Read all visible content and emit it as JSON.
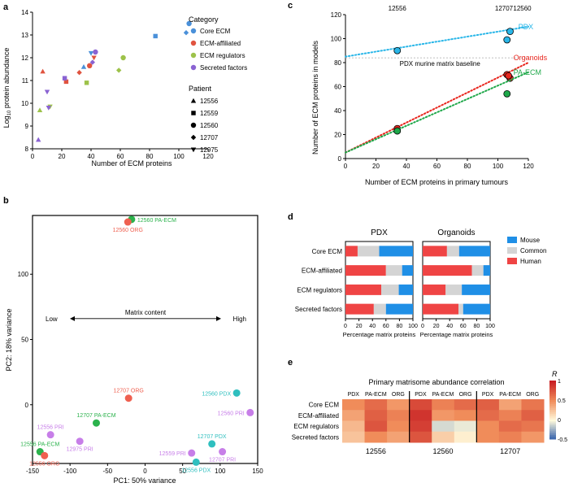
{
  "panel_labels": [
    "a",
    "b",
    "c",
    "d",
    "e"
  ],
  "colors": {
    "core_ecm": "#4a90d9",
    "ecm_affiliated": "#e0533f",
    "ecm_regulators": "#9dc24a",
    "secreted_factors": "#8a63d2",
    "mouse": "#1f8fe6",
    "common": "#d4d4d4",
    "human": "#ef4444",
    "pdx_line": "#29b6e8",
    "org_line": "#e8261e",
    "paecm_line": "#1fa84a",
    "pca_paecm": "#2bb24c",
    "pca_org": "#ef6050",
    "pca_pdx": "#2fbfbf",
    "pca_pri": "#c77ee8"
  },
  "chart_data": [
    {
      "id": "a",
      "type": "scatter",
      "xlabel": "Number of ECM proteins",
      "ylabel": "Log10 protein abundance",
      "ylabel_main": "Log",
      "ylabel_sub": "10",
      "ylabel_rest": " protein abundance",
      "xlim": [
        0,
        120
      ],
      "ylim": [
        8,
        14
      ],
      "xticks": [
        0,
        20,
        40,
        60,
        80,
        100,
        120
      ],
      "yticks": [
        8,
        9,
        10,
        11,
        12,
        13,
        14
      ],
      "legend_category_title": "Category",
      "legend_patient_title": "Patient",
      "categories": [
        {
          "key": "core_ecm",
          "label": "Core ECM"
        },
        {
          "key": "ecm_affiliated",
          "label": "ECM-affiliated"
        },
        {
          "key": "ecm_regulators",
          "label": "ECM regulators"
        },
        {
          "key": "secreted_factors",
          "label": "Secreted factors"
        }
      ],
      "patients": [
        {
          "id": "12556",
          "shape": "triangle-up"
        },
        {
          "id": "12559",
          "shape": "square"
        },
        {
          "id": "12560",
          "shape": "circle"
        },
        {
          "id": "12707",
          "shape": "diamond"
        },
        {
          "id": "12975",
          "shape": "triangle-down"
        }
      ],
      "points": [
        {
          "cat": "core_ecm",
          "patient": "12560",
          "x": 107,
          "y": 13.5
        },
        {
          "cat": "core_ecm",
          "patient": "12559",
          "x": 84,
          "y": 12.95
        },
        {
          "cat": "core_ecm",
          "patient": "12707",
          "x": 105,
          "y": 13.1
        },
        {
          "cat": "core_ecm",
          "patient": "12556",
          "x": 35,
          "y": 11.6
        },
        {
          "cat": "core_ecm",
          "patient": "12975",
          "x": 40,
          "y": 12.2
        },
        {
          "cat": "ecm_affiliated",
          "patient": "12556",
          "x": 7,
          "y": 11.4
        },
        {
          "cat": "ecm_affiliated",
          "patient": "12559",
          "x": 23,
          "y": 10.95
        },
        {
          "cat": "ecm_affiliated",
          "patient": "12707",
          "x": 32,
          "y": 11.35
        },
        {
          "cat": "ecm_affiliated",
          "patient": "12560",
          "x": 39,
          "y": 11.65
        },
        {
          "cat": "ecm_affiliated",
          "patient": "12975",
          "x": 42,
          "y": 12.0
        },
        {
          "cat": "ecm_regulators",
          "patient": "12556",
          "x": 5,
          "y": 9.7
        },
        {
          "cat": "ecm_regulators",
          "patient": "12975",
          "x": 12,
          "y": 9.85
        },
        {
          "cat": "ecm_regulators",
          "patient": "12559",
          "x": 37,
          "y": 10.9
        },
        {
          "cat": "ecm_regulators",
          "patient": "12707",
          "x": 59,
          "y": 11.45
        },
        {
          "cat": "ecm_regulators",
          "patient": "12560",
          "x": 62,
          "y": 12.0
        },
        {
          "cat": "secreted_factors",
          "patient": "12556",
          "x": 4,
          "y": 8.4
        },
        {
          "cat": "secreted_factors",
          "patient": "12975",
          "x": 10,
          "y": 10.5
        },
        {
          "cat": "secreted_factors",
          "patient": "12975",
          "x": 11,
          "y": 9.8
        },
        {
          "cat": "secreted_factors",
          "patient": "12559",
          "x": 22,
          "y": 11.1
        },
        {
          "cat": "secreted_factors",
          "patient": "12707",
          "x": 41,
          "y": 11.8
        },
        {
          "cat": "secreted_factors",
          "patient": "12560",
          "x": 43,
          "y": 12.25
        }
      ]
    },
    {
      "id": "b",
      "type": "scatter",
      "xlabel": "PC1: 50% variance",
      "ylabel": "PC2: 18% variance",
      "xlim": [
        -150,
        150
      ],
      "ylim": [
        -45,
        145
      ],
      "xticks": [
        -150,
        -100,
        -50,
        0,
        50,
        100,
        150
      ],
      "yticks": [
        0,
        50,
        100
      ],
      "annotation": {
        "low": "Low",
        "high": "High",
        "title": "Matrix content",
        "y": 66
      },
      "points": [
        {
          "label": "12560 PA-ECM",
          "group": "paecm",
          "x": -18,
          "y": 142,
          "label_side": "right"
        },
        {
          "label": "12560 ORG",
          "group": "org",
          "x": -23,
          "y": 140,
          "label_side": "below"
        },
        {
          "label": "12707 ORG",
          "group": "org",
          "x": -22,
          "y": 5,
          "label_side": "above"
        },
        {
          "label": "12707 PA-ECM",
          "group": "paecm",
          "x": -65,
          "y": -14,
          "label_side": "above"
        },
        {
          "label": "12556 PRI",
          "group": "pri",
          "x": -126,
          "y": -23,
          "label_side": "above"
        },
        {
          "label": "12975 PRI",
          "group": "pri",
          "x": -87,
          "y": -28,
          "label_side": "below"
        },
        {
          "label": "12556 PA-ECM",
          "group": "paecm",
          "x": -140,
          "y": -36,
          "label_side": "above"
        },
        {
          "label": "12556 ORG",
          "group": "org",
          "x": -134,
          "y": -39,
          "label_side": "below"
        },
        {
          "label": "12560 PDX",
          "group": "pdx",
          "x": 122,
          "y": 9,
          "label_side": "left"
        },
        {
          "label": "12560 PRI",
          "group": "pri",
          "x": 140,
          "y": -6,
          "label_side": "left"
        },
        {
          "label": "12707 PDX",
          "group": "pdx",
          "x": 89,
          "y": -30,
          "label_side": "above"
        },
        {
          "label": "12559 PRI",
          "group": "pri",
          "x": 62,
          "y": -37,
          "label_side": "left"
        },
        {
          "label": "12707 PRI",
          "group": "pri",
          "x": 103,
          "y": -36,
          "label_side": "below"
        },
        {
          "label": "12556 PDX",
          "group": "pdx",
          "x": 68,
          "y": -44,
          "label_side": "below"
        }
      ]
    },
    {
      "id": "c",
      "type": "scatter",
      "xlabel": "Number of ECM proteins in primary tumours",
      "ylabel": "Number of ECM proteins in models",
      "xlim": [
        0,
        120
      ],
      "ylim": [
        0,
        120
      ],
      "xticks": [
        0,
        20,
        40,
        60,
        80,
        100,
        120
      ],
      "yticks": [
        0,
        20,
        40,
        60,
        80,
        100,
        120
      ],
      "top_labels": [
        {
          "text": "12556",
          "x": 34
        },
        {
          "text": "12707",
          "x": 104
        },
        {
          "text": "12560",
          "x": 116
        }
      ],
      "baseline": {
        "y": 84,
        "label": "PDX murine matrix baseline"
      },
      "series": [
        {
          "name": "PDX",
          "key": "pdx",
          "trend": [
            [
              0,
              85
            ],
            [
              120,
              110
            ]
          ],
          "points": [
            [
              34,
              90
            ],
            [
              106,
              99
            ],
            [
              108,
              106
            ]
          ]
        },
        {
          "name": "Organoids",
          "key": "org",
          "trend": [
            [
              0,
              5
            ],
            [
              120,
              80
            ]
          ],
          "points": [
            [
              34,
              25
            ],
            [
              106,
              70
            ],
            [
              108,
              67
            ],
            [
              107,
              69
            ]
          ]
        },
        {
          "name": "PA-ECM",
          "key": "paecm",
          "trend": [
            [
              0,
              5
            ],
            [
              120,
              72
            ]
          ],
          "points": [
            [
              34,
              23
            ],
            [
              106,
              54
            ]
          ]
        }
      ]
    },
    {
      "id": "d",
      "type": "bar",
      "stacked": true,
      "orientation": "horizontal",
      "xlabel": "Percentage matrix proteins",
      "xticks": [
        0,
        20,
        40,
        60,
        80,
        100
      ],
      "categories": [
        "Core ECM",
        "ECM-affiliated",
        "ECM regulators",
        "Secreted factors"
      ],
      "legend": [
        {
          "key": "mouse",
          "label": "Mouse"
        },
        {
          "key": "common",
          "label": "Common"
        },
        {
          "key": "human",
          "label": "Human"
        }
      ],
      "panels": [
        {
          "title": "PDX",
          "bars": [
            {
              "human": 18,
              "common": 32,
              "mouse": 50
            },
            {
              "human": 60,
              "common": 24,
              "mouse": 16
            },
            {
              "human": 53,
              "common": 26,
              "mouse": 21
            },
            {
              "human": 42,
              "common": 18,
              "mouse": 40
            }
          ]
        },
        {
          "title": "Organoids",
          "bars": [
            {
              "human": 36,
              "common": 18,
              "mouse": 46
            },
            {
              "human": 73,
              "common": 17,
              "mouse": 10
            },
            {
              "human": 34,
              "common": 24,
              "mouse": 42
            },
            {
              "human": 53,
              "common": 7,
              "mouse": 40
            }
          ]
        }
      ]
    },
    {
      "id": "e",
      "type": "heatmap",
      "title": "Primary matrisome abundance correlation",
      "rows": [
        "Core ECM",
        "ECM-affiliated",
        "ECM regulators",
        "Secreted factors"
      ],
      "column_groups": [
        {
          "patient": "12556",
          "columns": [
            "PDX",
            "PA-ECM",
            "ORG"
          ]
        },
        {
          "patient": "12560",
          "columns": [
            "PDX",
            "PA-ECM",
            "ORG"
          ]
        },
        {
          "patient": "12707",
          "columns": [
            "PDX",
            "PA-ECM",
            "ORG"
          ]
        }
      ],
      "values": [
        [
          0.5,
          0.65,
          0.45,
          0.8,
          0.55,
          0.65,
          0.7,
          0.4,
          0.6
        ],
        [
          0.4,
          0.7,
          0.55,
          0.9,
          0.45,
          0.5,
          0.65,
          0.55,
          0.7
        ],
        [
          0.3,
          0.75,
          0.5,
          0.85,
          -0.1,
          -0.05,
          0.5,
          0.65,
          0.6
        ],
        [
          0.25,
          0.5,
          0.4,
          0.75,
          0.2,
          0.05,
          0.5,
          0.55,
          0.45
        ]
      ],
      "colorbar": {
        "title": "R",
        "ticks": [
          1,
          0.5,
          0,
          -0.5
        ],
        "range": [
          -0.5,
          1
        ]
      }
    }
  ]
}
